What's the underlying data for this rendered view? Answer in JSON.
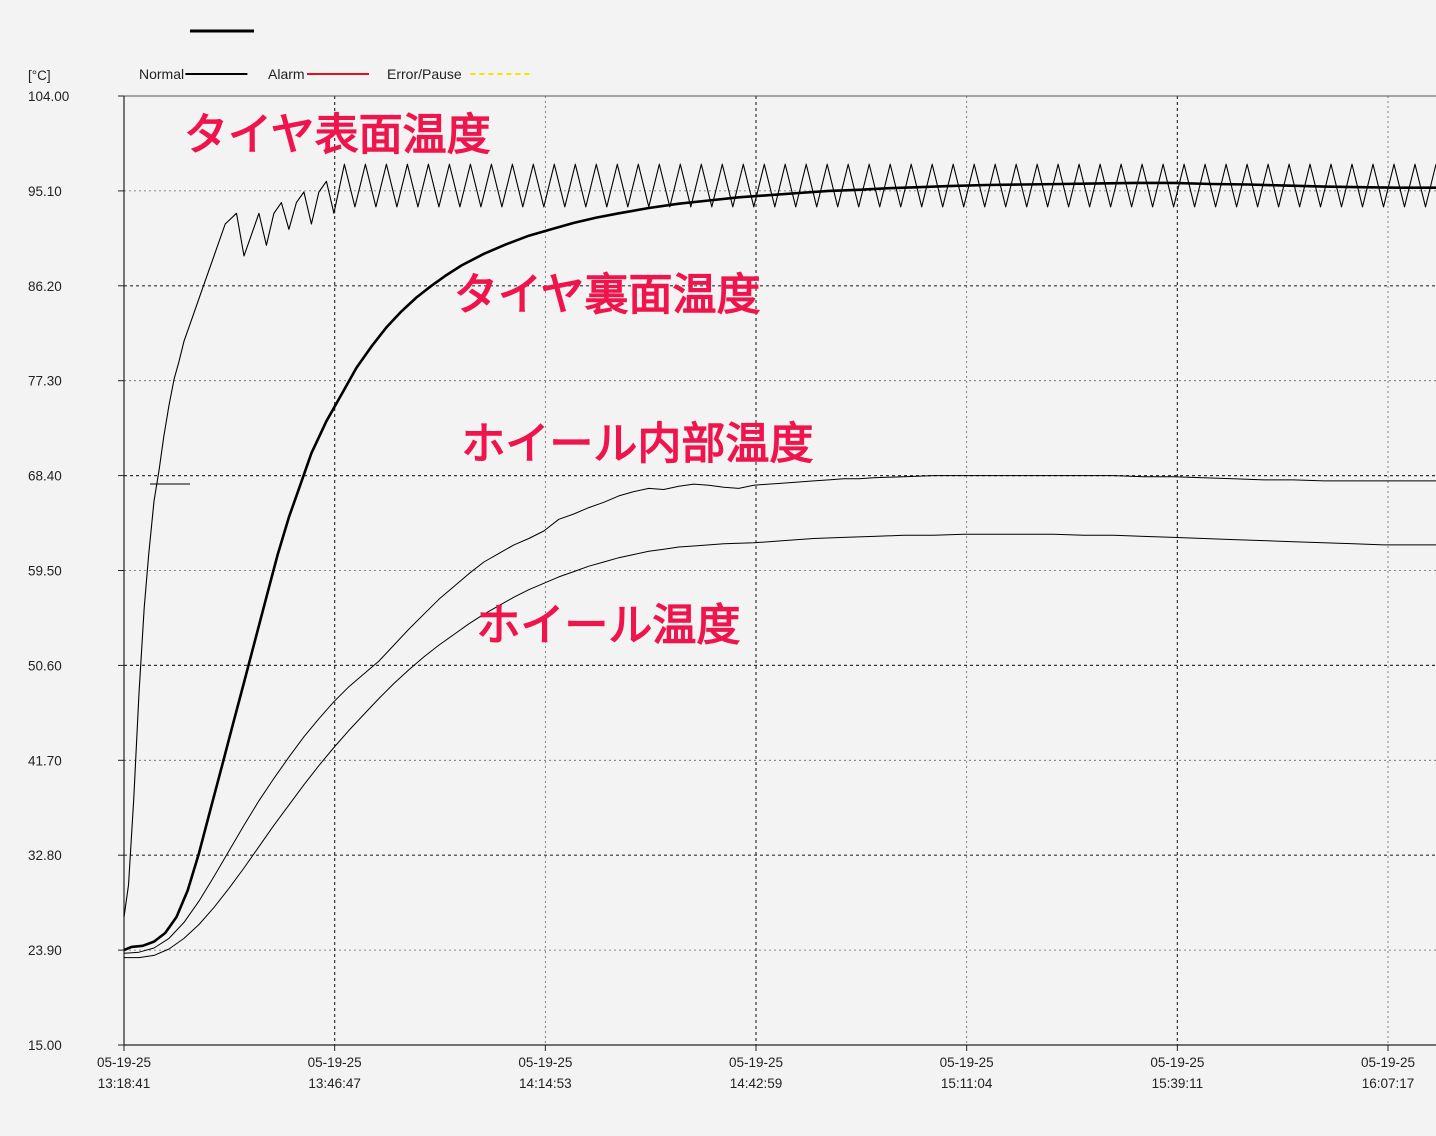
{
  "chart_data": {
    "type": "line",
    "y_unit": "[°C]",
    "ylim": [
      15.0,
      104.0
    ],
    "y_ticks": [
      "104.00",
      "95.10",
      "86.20",
      "77.30",
      "68.40",
      "59.50",
      "50.60",
      "41.70",
      "32.80",
      "23.90",
      "15.00"
    ],
    "y_tick_values": [
      104.0,
      95.1,
      86.2,
      77.3,
      68.4,
      59.5,
      50.6,
      41.7,
      32.8,
      23.9,
      15.0
    ],
    "x_unit": "elapsed minutes from 13:18:41",
    "xlim": [
      0,
      175
    ],
    "x_ticks": [
      {
        "date": "05-19-25",
        "time": "13:18:41",
        "t": 0
      },
      {
        "date": "05-19-25",
        "time": "13:46:47",
        "t": 28.1
      },
      {
        "date": "05-19-25",
        "time": "14:14:53",
        "t": 56.2
      },
      {
        "date": "05-19-25",
        "time": "14:42:59",
        "t": 84.3
      },
      {
        "date": "05-19-25",
        "time": "15:11:04",
        "t": 112.4
      },
      {
        "date": "05-19-25",
        "time": "15:39:11",
        "t": 140.5
      },
      {
        "date": "05-19-25",
        "time": "16:07:17",
        "t": 168.6
      }
    ],
    "grid": true,
    "legend": [
      {
        "label": "Normal",
        "color": "#000000",
        "style": "solid"
      },
      {
        "label": "Alarm",
        "color": "#e0101a",
        "style": "solid"
      },
      {
        "label": "Error/Pause",
        "color": "#f2e600",
        "style": "dashed"
      }
    ],
    "annotations": [
      {
        "text": "タイヤ表面温度",
        "x": 8,
        "y": 99
      },
      {
        "text": "タイヤ裏面温度",
        "x": 44,
        "y": 84
      },
      {
        "text": "ホイール内部温度",
        "x": 45,
        "y": 70
      },
      {
        "text": "ホイール温度",
        "x": 47,
        "y": 53
      }
    ],
    "annotation_color": "#f0144c",
    "series": [
      {
        "line_width": 1.1,
        "x": [
          0,
          0.6,
          1.3,
          2,
          2.7,
          3.3,
          4,
          4.7,
          5.3,
          6,
          6.7,
          7.3,
          8,
          9,
          10.5,
          12,
          13.5,
          15,
          16,
          17,
          18,
          19,
          20,
          21,
          22,
          23,
          24,
          25,
          26,
          27,
          28
        ],
        "y": [
          27,
          30,
          38,
          48,
          56,
          61,
          66,
          69,
          72,
          75,
          77.5,
          79,
          81,
          83,
          86,
          89,
          92,
          93,
          89,
          91,
          93,
          90,
          93,
          94,
          91.5,
          94,
          95,
          92,
          95,
          96,
          93
        ]
      },
      {
        "line_width": 2.6,
        "x": [
          0,
          1,
          2.5,
          4,
          5.5,
          7,
          8.5,
          10,
          11.5,
          13,
          14.5,
          16,
          17.5,
          19,
          20.5,
          22,
          23.5,
          25,
          27,
          29,
          31,
          33,
          35,
          37,
          39,
          41,
          43,
          45,
          48,
          51,
          54,
          57,
          60,
          63,
          66,
          70,
          74,
          78,
          82,
          86,
          90,
          94,
          98,
          102,
          106,
          110,
          115,
          120,
          125,
          130,
          135,
          140,
          145,
          150,
          155,
          160,
          165,
          170,
          175
        ],
        "y": [
          23.9,
          24.2,
          24.3,
          24.7,
          25.5,
          27,
          29.5,
          33,
          37,
          41,
          45,
          49,
          53,
          57,
          61,
          64.5,
          67.5,
          70.5,
          73.5,
          76,
          78.5,
          80.5,
          82.3,
          83.8,
          85.1,
          86.2,
          87.2,
          88.1,
          89.2,
          90.1,
          90.9,
          91.5,
          92.1,
          92.6,
          93,
          93.5,
          93.9,
          94.2,
          94.5,
          94.7,
          94.9,
          95.1,
          95.2,
          95.35,
          95.45,
          95.55,
          95.65,
          95.7,
          95.75,
          95.8,
          95.85,
          95.85,
          95.75,
          95.7,
          95.6,
          95.5,
          95.45,
          95.4,
          95.4
        ]
      },
      {
        "line_width": 1.0,
        "x": [
          0,
          2,
          4,
          6,
          8,
          10,
          12,
          14,
          16,
          18,
          20,
          22,
          24,
          26,
          28,
          30,
          32,
          34,
          36,
          38,
          40,
          42,
          44,
          46,
          48,
          50,
          52,
          54,
          56,
          58,
          60,
          62,
          64,
          66,
          68,
          70,
          72,
          74,
          76,
          78,
          80,
          82,
          84,
          86,
          88,
          90,
          92,
          94,
          96,
          98,
          100,
          104,
          108,
          112,
          116,
          120,
          124,
          128,
          132,
          136,
          140,
          144,
          148,
          152,
          156,
          160,
          164,
          168,
          172,
          175
        ],
        "y": [
          23.6,
          23.7,
          24.1,
          25,
          26.5,
          28.5,
          30.8,
          33.2,
          35.6,
          37.9,
          40,
          42,
          43.9,
          45.6,
          47.2,
          48.6,
          49.8,
          51,
          52.5,
          54,
          55.4,
          56.8,
          58,
          59.2,
          60.3,
          61.1,
          61.9,
          62.5,
          63.2,
          64.3,
          64.8,
          65.4,
          65.9,
          66.5,
          66.9,
          67.2,
          67.1,
          67.4,
          67.6,
          67.5,
          67.3,
          67.2,
          67.5,
          67.6,
          67.7,
          67.8,
          67.9,
          68,
          68.1,
          68.1,
          68.2,
          68.3,
          68.4,
          68.4,
          68.4,
          68.4,
          68.4,
          68.4,
          68.4,
          68.3,
          68.3,
          68.2,
          68.1,
          68,
          68,
          67.9,
          67.9,
          67.9,
          67.9,
          67.9
        ]
      },
      {
        "line_width": 1.0,
        "x": [
          0,
          2,
          4,
          6,
          8,
          10,
          12,
          14,
          16,
          18,
          20,
          22,
          24,
          26,
          28,
          30,
          32,
          34,
          36,
          38,
          40,
          42,
          44,
          46,
          48,
          50,
          52,
          54,
          56,
          58,
          60,
          62,
          64,
          66,
          68,
          70,
          72,
          74,
          76,
          78,
          80,
          84,
          88,
          92,
          96,
          100,
          104,
          108,
          112,
          116,
          120,
          124,
          128,
          132,
          136,
          140,
          144,
          148,
          152,
          156,
          160,
          164,
          168,
          172,
          175
        ],
        "y": [
          23.2,
          23.2,
          23.4,
          24,
          25,
          26.3,
          27.9,
          29.7,
          31.6,
          33.6,
          35.6,
          37.5,
          39.4,
          41.2,
          42.9,
          44.5,
          46,
          47.5,
          48.9,
          50.2,
          51.4,
          52.5,
          53.5,
          54.5,
          55.4,
          56.2,
          57,
          57.7,
          58.3,
          58.9,
          59.4,
          59.9,
          60.3,
          60.7,
          61,
          61.3,
          61.5,
          61.7,
          61.8,
          61.9,
          62,
          62.1,
          62.3,
          62.5,
          62.6,
          62.7,
          62.8,
          62.8,
          62.9,
          62.9,
          62.9,
          62.9,
          62.8,
          62.8,
          62.7,
          62.6,
          62.5,
          62.4,
          62.3,
          62.2,
          62.1,
          62,
          61.9,
          61.9,
          61.9
        ]
      }
    ]
  }
}
